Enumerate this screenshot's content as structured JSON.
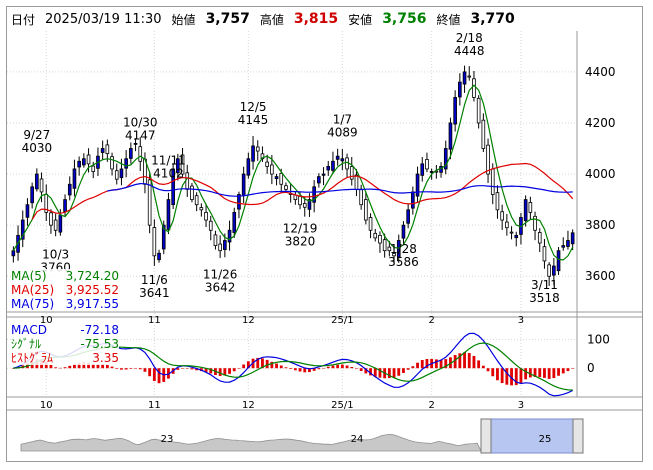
{
  "header": {
    "date_label": "日付",
    "datetime": "2025/03/19 11:30",
    "open_label": "始値",
    "open": "3,757",
    "high_label": "高値",
    "high": "3,815",
    "low_label": "安値",
    "low": "3,756",
    "close_label": "終値",
    "close": "3,770"
  },
  "colors": {
    "up": "#0000c8",
    "down": "#ffffff",
    "ma5": "#008000",
    "ma25": "#e00000",
    "ma75": "#0000e0",
    "macd": "#0000e0",
    "signal": "#008000",
    "hist": "#e00000"
  },
  "ma_legend": [
    {
      "label": "MA(5)",
      "value": "3,724.20",
      "color": "#008000"
    },
    {
      "label": "MA(25)",
      "value": "3,925.52",
      "color": "#e00000"
    },
    {
      "label": "MA(75)",
      "value": "3,917.55",
      "color": "#0000e0"
    }
  ],
  "macd_legend": [
    {
      "label": "MACD",
      "value": "-72.18",
      "color": "#0000e0"
    },
    {
      "label": "ｼｸﾞﾅﾙ",
      "value": "-75.53",
      "color": "#008000"
    },
    {
      "label": "ﾋｽﾄｸﾞﾗﾑ",
      "value": "3.35",
      "color": "#e00000"
    }
  ],
  "scrollbar": {
    "labels": [
      "23",
      "24",
      "25"
    ]
  },
  "chart_data": {
    "type": "candlestick",
    "price_axis": {
      "ticks": [
        3600,
        3800,
        4000,
        4200,
        4400
      ],
      "ylim": [
        3460,
        4560
      ]
    },
    "macd_axis": {
      "ticks": [
        100,
        0
      ],
      "ylim": [
        -100,
        150
      ]
    },
    "month_labels": [
      {
        "label": "10",
        "index": 7
      },
      {
        "label": "11",
        "index": 30
      },
      {
        "label": "12",
        "index": 50
      },
      {
        "label": "25/1",
        "index": 70
      },
      {
        "label": "2",
        "index": 89
      },
      {
        "label": "3",
        "index": 108
      }
    ],
    "annotations": [
      {
        "date": "9/27",
        "value": "4030",
        "index": 5,
        "position": "above"
      },
      {
        "date": "10/3",
        "value": "3760",
        "index": 9,
        "position": "below"
      },
      {
        "date": "10/30",
        "value": "4147",
        "index": 27,
        "position": "above"
      },
      {
        "date": "11/11",
        "value": "4102",
        "index": 33,
        "position": "above"
      },
      {
        "date": "11/6",
        "value": "3641",
        "index": 30,
        "position": "below"
      },
      {
        "date": "11/26",
        "value": "3642",
        "index": 44,
        "position": "below"
      },
      {
        "date": "12/5",
        "value": "4145",
        "index": 51,
        "position": "above"
      },
      {
        "date": "12/19",
        "value": "3820",
        "index": 61,
        "position": "below"
      },
      {
        "date": "1/7",
        "value": "4089",
        "index": 70,
        "position": "above"
      },
      {
        "date": "1/28",
        "value": "3586",
        "index": 83,
        "position": "below"
      },
      {
        "date": "2/18",
        "value": "4448",
        "index": 97,
        "position": "above"
      },
      {
        "date": "3/11",
        "value": "3518",
        "index": 113,
        "position": "below"
      }
    ],
    "close_series": [
      3700,
      3760,
      3820,
      3880,
      3950,
      4000,
      3930,
      3850,
      3800,
      3780,
      3840,
      3900,
      3960,
      4020,
      4050,
      4060,
      4040,
      4010,
      4070,
      4100,
      4080,
      4020,
      3980,
      4020,
      4060,
      4100,
      4120,
      4050,
      3960,
      3800,
      3680,
      3690,
      3800,
      3900,
      4020,
      4060,
      4000,
      3940,
      3900,
      3880,
      3860,
      3820,
      3780,
      3720,
      3700,
      3740,
      3780,
      3850,
      3920,
      4000,
      4060,
      4110,
      4090,
      4060,
      4030,
      4000,
      3990,
      3960,
      3940,
      3920,
      3900,
      3880,
      3870,
      3900,
      3950,
      3990,
      4000,
      4030,
      4050,
      4070,
      4060,
      4020,
      3980,
      3940,
      3880,
      3820,
      3780,
      3750,
      3730,
      3700,
      3700,
      3680,
      3740,
      3800,
      3860,
      3930,
      4000,
      4040,
      4020,
      4010,
      4010,
      4030,
      4100,
      4200,
      4300,
      4360,
      4400,
      4380,
      4300,
      4200,
      4100,
      4000,
      3920,
      3860,
      3820,
      3790,
      3770,
      3760,
      3830,
      3900,
      3850,
      3780,
      3730,
      3660,
      3600,
      3640,
      3700,
      3720,
      3740,
      3770
    ],
    "ohlc_seed": 1
  }
}
